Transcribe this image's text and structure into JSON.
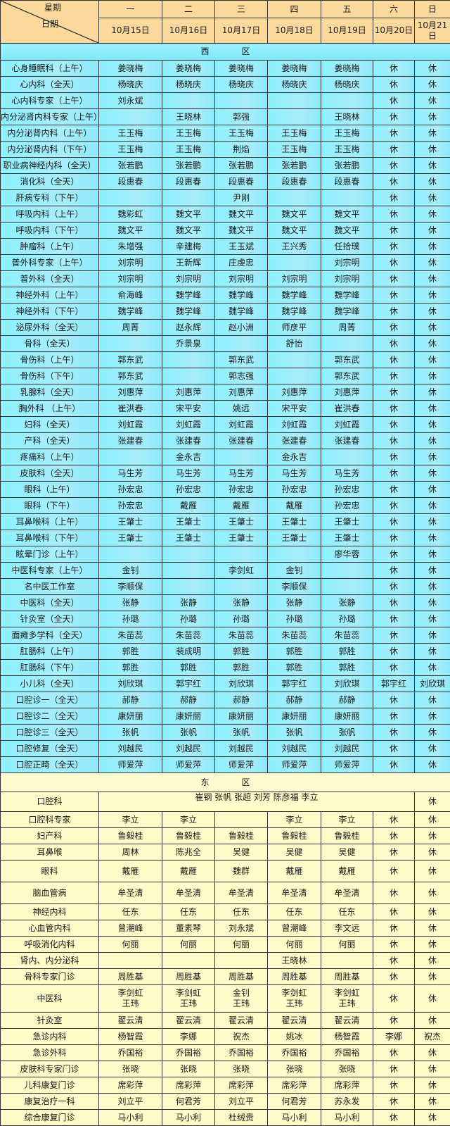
{
  "header": {
    "weekday_label": "星期",
    "date_label": "日期",
    "weekdays": [
      "一",
      "二",
      "三",
      "四",
      "五",
      "六",
      "日"
    ],
    "dates": [
      "10月15日",
      "10月16日",
      "10月17日",
      "10月18日",
      "10月19日",
      "10月20日",
      "10月21日"
    ]
  },
  "west": {
    "title_a": "西",
    "title_b": "区",
    "rows": [
      {
        "dept": "心身睡眠科（上午）",
        "cells": [
          "姜晓梅",
          "姜晓梅",
          "姜晓梅",
          "姜晓梅",
          "姜晓梅",
          "休",
          "休"
        ]
      },
      {
        "dept": "心内科（全天）",
        "cells": [
          "杨晓庆",
          "杨晓庆",
          "杨晓庆",
          "杨晓庆",
          "杨晓庆",
          "休",
          "休"
        ]
      },
      {
        "dept": "心内科专家（上午）",
        "cells": [
          "刘永斌",
          "",
          "",
          "",
          "",
          "休",
          "休"
        ]
      },
      {
        "dept": "内分泌肾内科专家（上午）",
        "cells": [
          "",
          "王晓林",
          "郭强",
          "",
          "王晓林",
          "休",
          "休"
        ]
      },
      {
        "dept": "内分泌肾内科（上午）",
        "cells": [
          "王玉梅",
          "王玉梅",
          "王玉梅",
          "王玉梅",
          "王玉梅",
          "休",
          "休"
        ]
      },
      {
        "dept": "内分泌肾内科（下午）",
        "cells": [
          "王玉梅",
          "王玉梅",
          "荆焰",
          "王玉梅",
          "王玉梅",
          "休",
          "休"
        ]
      },
      {
        "dept": "职业病神经内科（全天）",
        "cells": [
          "张若鹏",
          "张若鹏",
          "张若鹏",
          "张若鹏",
          "张若鹏",
          "休",
          "休"
        ]
      },
      {
        "dept": "消化科（全天）",
        "cells": [
          "段惠春",
          "段惠春",
          "段惠春",
          "段惠春",
          "段惠春",
          "休",
          "休"
        ]
      },
      {
        "dept": "肝病专科（下午）",
        "cells": [
          "",
          "",
          "尹刚",
          "",
          "",
          "休",
          "休"
        ]
      },
      {
        "dept": "呼吸内科（上午）",
        "cells": [
          "魏彩虹",
          "魏文平",
          "魏文平",
          "魏文平",
          "魏文平",
          "休",
          "休"
        ]
      },
      {
        "dept": "呼吸内科（下午）",
        "cells": [
          "魏文平",
          "魏文平",
          "魏文平",
          "魏文平",
          "魏文平",
          "休",
          "休"
        ]
      },
      {
        "dept": "肿瘤科（上午）",
        "cells": [
          "朱增强",
          "辛建梅",
          "王玉斌",
          "王兴秀",
          "任拾璞",
          "休",
          "休"
        ]
      },
      {
        "dept": "普外科专家（上午）",
        "cells": [
          "刘宗明",
          "王新辉",
          "庄虔忠",
          "",
          "刘宗明",
          "休",
          "休"
        ]
      },
      {
        "dept": "普外科（全天）",
        "cells": [
          "刘宗明",
          "刘宗明",
          "刘宗明",
          "刘宗明",
          "刘宗明",
          "休",
          "休"
        ]
      },
      {
        "dept": "神经外科（上午）",
        "cells": [
          "俞海峰",
          "魏学峰",
          "魏学峰",
          "魏学峰",
          "魏学峰",
          "休",
          "休"
        ]
      },
      {
        "dept": "神经外科（下午）",
        "cells": [
          "魏学峰",
          "魏学峰",
          "魏学峰",
          "魏学峰",
          "魏学峰",
          "休",
          "休"
        ]
      },
      {
        "dept": "泌尿外科（全天）",
        "cells": [
          "周菁",
          "赵永辉",
          "赵小洲",
          "师彦平",
          "周菁",
          "休",
          "休"
        ]
      },
      {
        "dept": "骨科（全天）",
        "cells": [
          "",
          "乔景泉",
          "",
          "舒怡",
          "",
          "休",
          "休"
        ]
      },
      {
        "dept": "骨伤科（上午）",
        "cells": [
          "郭东武",
          "",
          "郭东武",
          "",
          "郭东武",
          "休",
          "休"
        ]
      },
      {
        "dept": "骨伤科（下午）",
        "cells": [
          "郭东武",
          "",
          "郭志强",
          "",
          "郭东武",
          "休",
          "休"
        ]
      },
      {
        "dept": "乳腺科（全天）",
        "cells": [
          "刘惠萍",
          "刘惠萍",
          "刘惠萍",
          "刘惠萍",
          "刘惠萍",
          "休",
          "休"
        ]
      },
      {
        "dept": "胸外科 （上午）",
        "cells": [
          "崔洪春",
          "宋平安",
          "姚远",
          "宋平安",
          "崔洪春",
          "休",
          "休"
        ]
      },
      {
        "dept": "妇科（全天）",
        "cells": [
          "刘虹霞",
          "刘虹霞",
          "刘虹霞",
          "刘虹霞",
          "刘虹霞",
          "休",
          "休"
        ]
      },
      {
        "dept": "产科（全天）",
        "cells": [
          "张建春",
          "张建春",
          "张建春",
          "张建春",
          "张建春",
          "休",
          "休"
        ]
      },
      {
        "dept": "疼痛科（上午）",
        "cells": [
          "",
          "金永吉",
          "",
          "金永吉",
          "",
          "休",
          "休"
        ]
      },
      {
        "dept": "皮肤科（全天）",
        "cells": [
          "马生芳",
          "马生芳",
          "马生芳",
          "马生芳",
          "马生芳",
          "休",
          "休"
        ]
      },
      {
        "dept": "眼科（上午）",
        "cells": [
          "孙宏忠",
          "孙宏忠",
          "孙宏忠",
          "孙宏忠",
          "孙宏忠",
          "休",
          "休"
        ]
      },
      {
        "dept": "眼科（下午）",
        "cells": [
          "孙宏忠",
          "戴雁",
          "戴雁",
          "戴雁",
          "孙宏忠",
          "休",
          "休"
        ]
      },
      {
        "dept": "耳鼻喉科（上午）",
        "cells": [
          "王肇士",
          "王肇士",
          "王肇士",
          "王肇士",
          "王肇士",
          "休",
          "休"
        ]
      },
      {
        "dept": "耳鼻喉科（下午）",
        "cells": [
          "王肇士",
          "王肇士",
          "王肇士",
          "王肇士",
          "王肇士",
          "休",
          "休"
        ]
      },
      {
        "dept": "眩晕门诊（上午）",
        "cells": [
          "",
          "",
          "",
          "",
          "廖华蓉",
          "休",
          "休"
        ]
      },
      {
        "dept": "中医科专家（上午）",
        "cells": [
          "金钊",
          "",
          "李剑虹",
          "金钊",
          "",
          "休",
          "休"
        ]
      },
      {
        "dept": "名中医工作室",
        "cells": [
          "李顺保",
          "",
          "",
          "李顺保",
          "",
          "休",
          "休"
        ]
      },
      {
        "dept": "中医科（全天）",
        "cells": [
          "张静",
          "张静",
          "张静",
          "张静",
          "张静",
          "休",
          "休"
        ]
      },
      {
        "dept": "针灸室（全天）",
        "cells": [
          "孙璐",
          "孙璐",
          "孙璐",
          "孙璐",
          "孙璐",
          "休",
          "休"
        ]
      },
      {
        "dept": "面瘫多学科（全天）",
        "cells": [
          "朱苗蕊",
          "朱苗蕊",
          "朱苗蕊",
          "朱苗蕊",
          "朱苗蕊",
          "休",
          "休"
        ]
      },
      {
        "dept": "肛肠科（上午）",
        "cells": [
          "郭胜",
          "裴成明",
          "郭胜",
          "郭胜",
          "郭胜",
          "休",
          "休"
        ]
      },
      {
        "dept": "肛肠科（下午）",
        "cells": [
          "郭胜",
          "郭胜",
          "郭胜",
          "郭胜",
          "郭胜",
          "休",
          "休"
        ]
      },
      {
        "dept": "小儿科（全天）",
        "cells": [
          "刘欣琪",
          "郭宇红",
          "刘欣琪",
          "郭宇红",
          "刘欣琪",
          "郭宇红",
          "刘欣琪"
        ]
      },
      {
        "dept": "口腔诊一（全天）",
        "cells": [
          "郝静",
          "郝静",
          "郝静",
          "郝静",
          "郝静",
          "休",
          "休"
        ]
      },
      {
        "dept": "口腔诊二（全天）",
        "cells": [
          "康妍丽",
          "康妍丽",
          "康妍丽",
          "康妍丽",
          "康妍丽",
          "休",
          "休"
        ]
      },
      {
        "dept": "口腔诊三（全天）",
        "cells": [
          "张帆",
          "张帆",
          "张帆",
          "张帆",
          "张帆",
          "休",
          "休"
        ]
      },
      {
        "dept": "口腔修复（全天）",
        "cells": [
          "刘越民",
          "刘越民",
          "刘越民",
          "刘越民",
          "刘越民",
          "休",
          "休"
        ]
      },
      {
        "dept": "口腔正畸（全天）",
        "cells": [
          "师爱萍",
          "师爱萍",
          "师爱萍",
          "师爱萍",
          "师爱萍",
          "休",
          "休"
        ]
      }
    ]
  },
  "east": {
    "title_a": "东",
    "title_b": "区",
    "dental": {
      "dept": "口腔科",
      "merged": "崔钢  张帆  张超  刘芳  陈彦福  李立",
      "sunday": "休"
    },
    "rows": [
      {
        "dept": "口腔科专家",
        "cells": [
          "李立",
          "李立",
          "",
          "李立",
          "李立",
          "休",
          "休"
        ]
      },
      {
        "dept": "妇产科",
        "cells": [
          "鲁毅桂",
          "鲁毅桂",
          "鲁毅桂",
          "鲁毅桂",
          "鲁毅桂",
          "休",
          "休"
        ]
      },
      {
        "dept": "耳鼻喉",
        "cells": [
          "周林",
          "陈兆全",
          "吴健",
          "吴健",
          "吴健",
          "休",
          "休"
        ]
      },
      {
        "dept": "眼科",
        "size": "tall",
        "cells": [
          "戴雁",
          "戴雁",
          "魏群",
          "戴雁",
          "戴雁",
          "休",
          "休"
        ]
      },
      {
        "dept": "脑血管病",
        "size": "tall",
        "cells": [
          "牟圣清",
          "牟圣清",
          "牟圣清",
          "牟圣清",
          "牟圣清",
          "休",
          "休"
        ]
      },
      {
        "dept": "神经内科",
        "cells": [
          "任东",
          "任东",
          "任东",
          "任东",
          "任东",
          "休",
          "休"
        ]
      },
      {
        "dept": "心血管内科",
        "cells": [
          "曾潮峰",
          "董素琴",
          "刘永斌",
          "曾潮峰",
          "李文远",
          "休",
          "休"
        ]
      },
      {
        "dept": "呼吸消化内科",
        "cells": [
          "何丽",
          "何丽",
          "何丽",
          "何丽",
          "何丽",
          "休",
          "休"
        ]
      },
      {
        "dept": "肾内、内分泌科",
        "cells": [
          "",
          "",
          "",
          "王晓林",
          "",
          "休",
          "休"
        ]
      },
      {
        "dept": "骨科专家门诊",
        "cells": [
          "周胜基",
          "周胜基",
          "周胜基",
          "周胜基",
          "周胜基",
          "休",
          "休"
        ]
      },
      {
        "dept": "中医科",
        "size": "xtall",
        "cells": [
          "李剑虹\n王玮",
          "李剑虹\n王玮",
          "金钊\n王玮",
          "李剑虹\n王玮",
          "李剑虹\n王玮",
          "休",
          "休"
        ]
      },
      {
        "dept": "针灸室",
        "cells": [
          "翟云清",
          "翟云清",
          "翟云清",
          "翟云清",
          "翟云清",
          "休",
          "休"
        ]
      },
      {
        "dept": "急诊内科",
        "cells": [
          "杨智霞",
          "李娜",
          "祝杰",
          "姚冰",
          "杨智霞",
          "李娜",
          "祝杰"
        ]
      },
      {
        "dept": "急诊外科",
        "cells": [
          "乔国裕",
          "乔国裕",
          "乔国裕",
          "乔国裕",
          "乔国裕",
          "休",
          "休"
        ]
      },
      {
        "dept": "皮肤科专家门诊",
        "cells": [
          "张晓",
          "张晓",
          "张晓",
          "张晓",
          "张晓",
          "休",
          "休"
        ]
      },
      {
        "dept": "儿科康复门诊",
        "cells": [
          "席彩萍",
          "席彩萍",
          "席彩萍",
          "席彩萍",
          "席彩萍",
          "休",
          "休"
        ]
      },
      {
        "dept": "康复治疗一科",
        "cells": [
          "刘立平",
          "何君芳",
          "刘立平",
          "何君芳",
          "苏永发",
          "休",
          "休"
        ]
      },
      {
        "dept": "综合康复门诊",
        "cells": [
          "马小利",
          "马小利",
          "杜绒贵",
          "马小利",
          "马小利",
          "休",
          "休"
        ]
      }
    ]
  },
  "colors": {
    "header": "#fbd89c",
    "corner": "#f4a49a",
    "west": "#8df0ff",
    "east": "#fdfbc8"
  }
}
